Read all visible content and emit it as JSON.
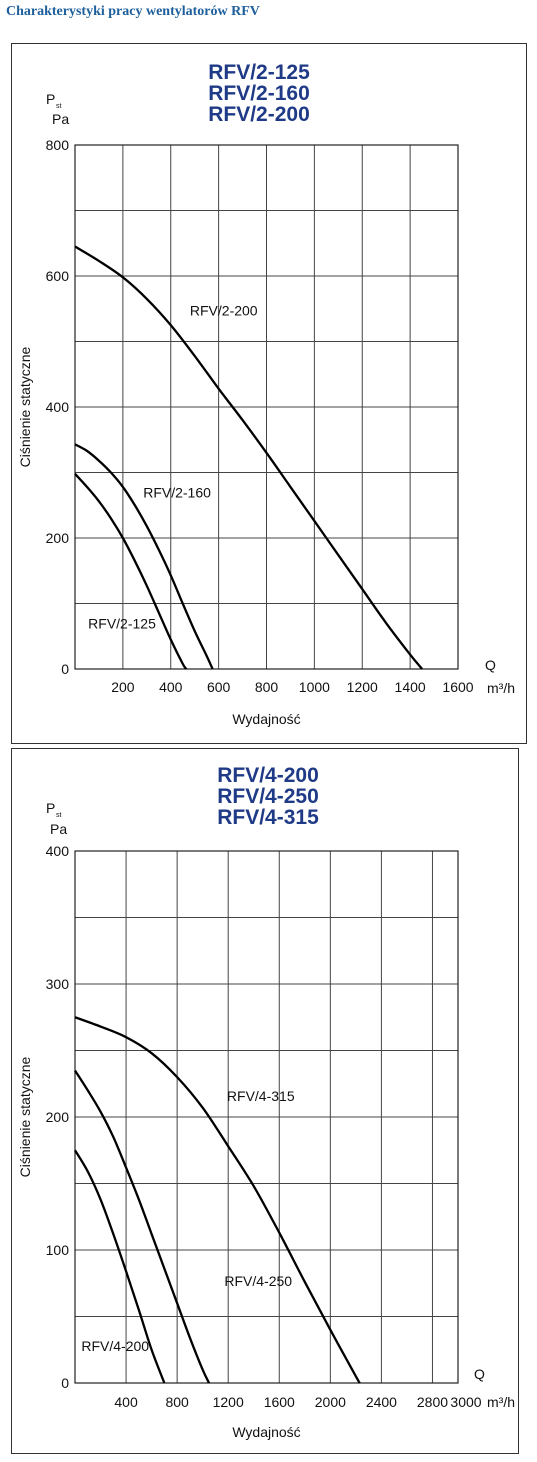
{
  "page": {
    "heading": "Charakterystyki pracy wentylatorów RFV"
  },
  "chart_data": [
    {
      "type": "line",
      "title": [
        "RFV/2-125",
        "RFV/2-160",
        "RFV/2-200"
      ],
      "ylabel": "Ciśnienie statyczne",
      "y_symbol": "P",
      "y_symbol_sub": "st",
      "y_unit": "Pa",
      "xlabel": "Wydajność",
      "x_symbol": "Q",
      "x_unit": "m³/h",
      "xlim": [
        0,
        1600
      ],
      "ylim": [
        0,
        800
      ],
      "x_ticks": [
        200,
        400,
        600,
        800,
        1000,
        1200,
        1400,
        1600
      ],
      "x_grid_step": 200,
      "y_ticks": [
        0,
        200,
        400,
        600,
        800
      ],
      "y_grid_step": 100,
      "grid": true,
      "series": [
        {
          "name": "RFV/2-200",
          "label_at": [
            480,
            540
          ],
          "points": [
            [
              0,
              645
            ],
            [
              100,
              623
            ],
            [
              200,
              598
            ],
            [
              300,
              565
            ],
            [
              400,
              525
            ],
            [
              500,
              478
            ],
            [
              600,
              428
            ],
            [
              700,
              380
            ],
            [
              800,
              330
            ],
            [
              900,
              278
            ],
            [
              1000,
              226
            ],
            [
              1100,
              174
            ],
            [
              1200,
              122
            ],
            [
              1300,
              70
            ],
            [
              1400,
              22
            ],
            [
              1450,
              0
            ]
          ]
        },
        {
          "name": "RFV/2-160",
          "label_at": [
            285,
            262
          ],
          "points": [
            [
              0,
              343
            ],
            [
              50,
              333
            ],
            [
              100,
              318
            ],
            [
              150,
              300
            ],
            [
              200,
              278
            ],
            [
              250,
              250
            ],
            [
              300,
              218
            ],
            [
              350,
              182
            ],
            [
              400,
              143
            ],
            [
              450,
              100
            ],
            [
              500,
              58
            ],
            [
              550,
              20
            ],
            [
              575,
              0
            ]
          ]
        },
        {
          "name": "RFV/2-125",
          "label_at": [
            55,
            62
          ],
          "points": [
            [
              0,
              298
            ],
            [
              50,
              278
            ],
            [
              100,
              256
            ],
            [
              150,
              230
            ],
            [
              200,
              200
            ],
            [
              250,
              165
            ],
            [
              300,
              127
            ],
            [
              350,
              86
            ],
            [
              400,
              45
            ],
            [
              450,
              8
            ],
            [
              465,
              0
            ]
          ]
        }
      ]
    },
    {
      "type": "line",
      "title": [
        "RFV/4-200",
        "RFV/4-250",
        "RFV/4-315"
      ],
      "ylabel": "Ciśnienie statyczne",
      "y_symbol": "P",
      "y_symbol_sub": "st",
      "y_unit": "Pa",
      "xlabel": "Wydajność",
      "x_symbol": "Q",
      "x_unit": "m³/h",
      "xlim": [
        0,
        3000
      ],
      "ylim": [
        0,
        400
      ],
      "x_ticks": [
        400,
        800,
        1200,
        1600,
        2000,
        2400,
        2800,
        3000
      ],
      "x_grid_step": 400,
      "y_ticks": [
        0,
        100,
        200,
        300,
        400
      ],
      "y_grid_step": 50,
      "grid": true,
      "series": [
        {
          "name": "RFV/4-315",
          "label_at": [
            1190,
            212
          ],
          "points": [
            [
              0,
              275
            ],
            [
              200,
              268
            ],
            [
              400,
              260
            ],
            [
              600,
              248
            ],
            [
              800,
              230
            ],
            [
              1000,
              207
            ],
            [
              1200,
              178
            ],
            [
              1400,
              148
            ],
            [
              1600,
              113
            ],
            [
              1800,
              76
            ],
            [
              2000,
              40
            ],
            [
              2200,
              5
            ],
            [
              2230,
              0
            ]
          ]
        },
        {
          "name": "RFV/4-250",
          "label_at": [
            1170,
            73
          ],
          "points": [
            [
              0,
              235
            ],
            [
              100,
              220
            ],
            [
              200,
              204
            ],
            [
              300,
              185
            ],
            [
              400,
              162
            ],
            [
              500,
              138
            ],
            [
              600,
              112
            ],
            [
              700,
              86
            ],
            [
              800,
              60
            ],
            [
              900,
              34
            ],
            [
              1000,
              10
            ],
            [
              1050,
              0
            ]
          ]
        },
        {
          "name": "RFV/4-200",
          "label_at": [
            50,
            24
          ],
          "points": [
            [
              0,
              175
            ],
            [
              100,
              159
            ],
            [
              200,
              138
            ],
            [
              300,
              112
            ],
            [
              400,
              84
            ],
            [
              500,
              55
            ],
            [
              600,
              25
            ],
            [
              700,
              0
            ]
          ]
        }
      ]
    }
  ]
}
